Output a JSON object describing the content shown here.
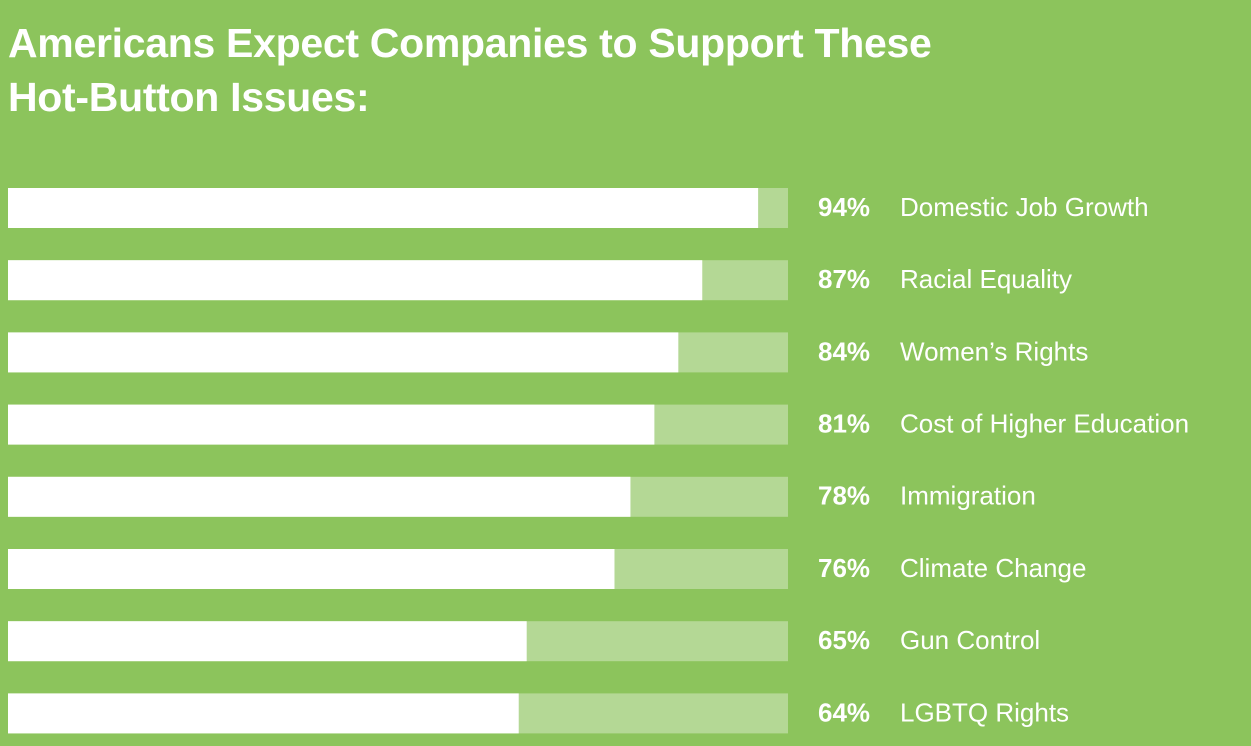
{
  "chart_data": {
    "type": "bar",
    "orientation": "horizontal",
    "title": "Americans Expect Companies to Support These Hot-Button Issues:",
    "categories": [
      "Domestic Job Growth",
      "Racial Equality",
      "Women’s Rights",
      "Cost of Higher Education",
      "Immigration",
      "Climate Change",
      "Gun Control",
      "LGBTQ Rights"
    ],
    "values": [
      94,
      87,
      84,
      81,
      78,
      76,
      65,
      64
    ],
    "value_labels": [
      "94%",
      "87%",
      "84%",
      "81%",
      "78%",
      "76%",
      "65%",
      "64%"
    ],
    "xlim": [
      0,
      100
    ],
    "color": "#ffffff",
    "background": "#8cc45c"
  }
}
